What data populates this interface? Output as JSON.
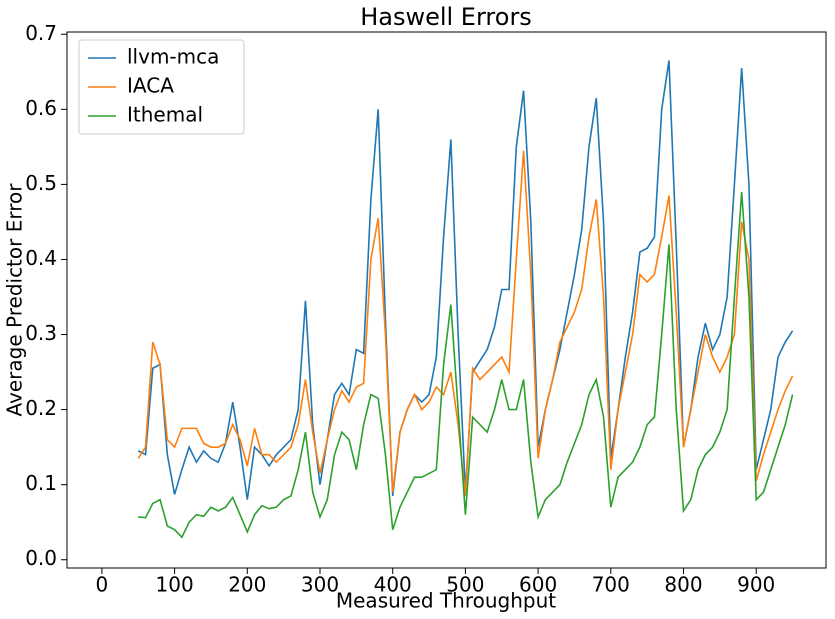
{
  "chart_data": {
    "type": "line",
    "title": "Haswell Errors",
    "x_label": "Measured Throughput",
    "y_label": "Average Predictor Error",
    "x": [
      50,
      60,
      70,
      80,
      90,
      100,
      110,
      120,
      130,
      140,
      150,
      160,
      170,
      180,
      190,
      200,
      210,
      220,
      230,
      240,
      250,
      260,
      270,
      280,
      290,
      300,
      310,
      320,
      330,
      340,
      350,
      360,
      370,
      380,
      390,
      400,
      410,
      420,
      430,
      440,
      450,
      460,
      470,
      480,
      490,
      500,
      510,
      520,
      530,
      540,
      550,
      560,
      570,
      580,
      590,
      600,
      610,
      620,
      630,
      640,
      650,
      660,
      670,
      680,
      690,
      700,
      710,
      720,
      730,
      740,
      750,
      760,
      770,
      780,
      790,
      800,
      810,
      820,
      830,
      840,
      850,
      860,
      870,
      880,
      890,
      900,
      910,
      920,
      930,
      940,
      950
    ],
    "series": [
      {
        "name": "llvm-mca",
        "color": "#1f77b4",
        "values": [
          0.145,
          0.14,
          0.255,
          0.26,
          0.14,
          0.087,
          0.12,
          0.15,
          0.13,
          0.145,
          0.135,
          0.13,
          0.155,
          0.21,
          0.15,
          0.08,
          0.15,
          0.14,
          0.125,
          0.14,
          0.15,
          0.16,
          0.2,
          0.345,
          0.18,
          0.1,
          0.16,
          0.22,
          0.235,
          0.22,
          0.28,
          0.275,
          0.48,
          0.6,
          0.32,
          0.085,
          0.17,
          0.2,
          0.22,
          0.21,
          0.22,
          0.27,
          0.43,
          0.56,
          0.3,
          0.09,
          0.25,
          0.265,
          0.28,
          0.31,
          0.36,
          0.36,
          0.55,
          0.625,
          0.45,
          0.15,
          0.2,
          0.24,
          0.28,
          0.33,
          0.38,
          0.44,
          0.55,
          0.615,
          0.45,
          0.135,
          0.2,
          0.27,
          0.33,
          0.41,
          0.415,
          0.43,
          0.6,
          0.665,
          0.42,
          0.15,
          0.2,
          0.27,
          0.315,
          0.28,
          0.3,
          0.35,
          0.5,
          0.655,
          0.5,
          0.12,
          0.16,
          0.2,
          0.27,
          0.29,
          0.305
        ]
      },
      {
        "name": "IACA",
        "color": "#ff7f0e",
        "values": [
          0.135,
          0.15,
          0.29,
          0.26,
          0.16,
          0.15,
          0.175,
          0.175,
          0.175,
          0.155,
          0.15,
          0.15,
          0.155,
          0.18,
          0.16,
          0.125,
          0.175,
          0.14,
          0.14,
          0.13,
          0.14,
          0.15,
          0.18,
          0.24,
          0.17,
          0.115,
          0.16,
          0.2,
          0.225,
          0.21,
          0.23,
          0.235,
          0.4,
          0.455,
          0.3,
          0.09,
          0.17,
          0.2,
          0.22,
          0.2,
          0.21,
          0.23,
          0.22,
          0.25,
          0.18,
          0.085,
          0.255,
          0.24,
          0.25,
          0.26,
          0.27,
          0.25,
          0.4,
          0.545,
          0.38,
          0.135,
          0.2,
          0.24,
          0.29,
          0.31,
          0.33,
          0.36,
          0.43,
          0.48,
          0.35,
          0.12,
          0.2,
          0.25,
          0.3,
          0.38,
          0.37,
          0.38,
          0.43,
          0.485,
          0.33,
          0.15,
          0.2,
          0.25,
          0.3,
          0.27,
          0.25,
          0.27,
          0.3,
          0.45,
          0.4,
          0.105,
          0.14,
          0.17,
          0.2,
          0.225,
          0.245
        ]
      },
      {
        "name": "Ithemal",
        "color": "#2ca02c",
        "values": [
          0.057,
          0.056,
          0.075,
          0.08,
          0.045,
          0.04,
          0.03,
          0.05,
          0.06,
          0.058,
          0.07,
          0.065,
          0.07,
          0.083,
          0.06,
          0.037,
          0.06,
          0.072,
          0.068,
          0.07,
          0.08,
          0.085,
          0.12,
          0.17,
          0.09,
          0.057,
          0.08,
          0.14,
          0.17,
          0.16,
          0.12,
          0.18,
          0.22,
          0.215,
          0.14,
          0.04,
          0.07,
          0.09,
          0.11,
          0.11,
          0.115,
          0.12,
          0.26,
          0.34,
          0.2,
          0.06,
          0.19,
          0.18,
          0.17,
          0.2,
          0.24,
          0.2,
          0.2,
          0.24,
          0.13,
          0.057,
          0.08,
          0.09,
          0.1,
          0.13,
          0.155,
          0.18,
          0.22,
          0.24,
          0.19,
          0.07,
          0.11,
          0.12,
          0.13,
          0.15,
          0.18,
          0.19,
          0.3,
          0.42,
          0.2,
          0.065,
          0.08,
          0.12,
          0.14,
          0.15,
          0.17,
          0.2,
          0.35,
          0.49,
          0.35,
          0.08,
          0.09,
          0.12,
          0.15,
          0.18,
          0.22
        ]
      }
    ],
    "xlim": [
      -48,
      996
    ],
    "ylim": [
      -0.011,
      0.703
    ],
    "xticks": [
      0,
      100,
      200,
      300,
      400,
      500,
      600,
      700,
      800,
      900
    ],
    "yticks": [
      {
        "value": 0,
        "label": "0.0"
      },
      0.1,
      0.2,
      0.3,
      0.4,
      0.5,
      0.6,
      0.7
    ],
    "legend": "upper left"
  }
}
